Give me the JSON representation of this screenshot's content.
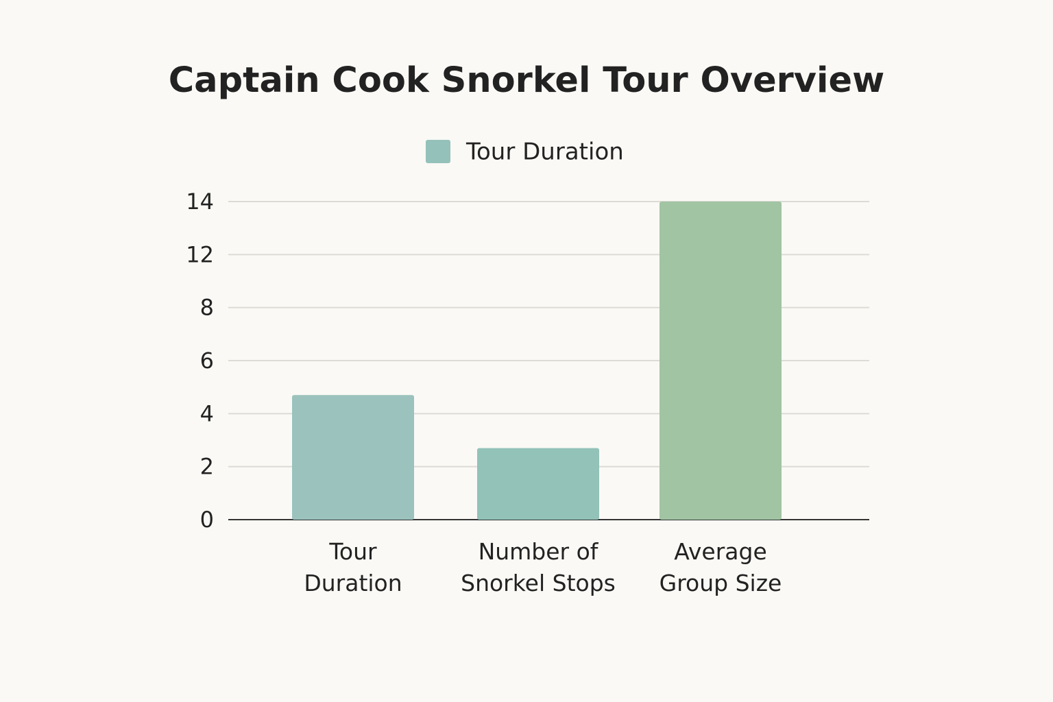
{
  "chart_data": {
    "type": "bar",
    "title": "Captain Cook Snorkel Tour Overview",
    "categories": [
      "Tour\nDuration",
      "Number of\nSnorkel Stops",
      "Average\nGroup Size"
    ],
    "series": [
      {
        "name": "Tour Duration",
        "color": "#94c1b9",
        "colors": [
          "#9bc2bc",
          "#92c2b8",
          "#a1c4a3"
        ],
        "values": [
          4.7,
          2.7,
          14
        ]
      }
    ],
    "ylim": [
      0,
      14
    ],
    "yticks": [
      0,
      2,
      4,
      6,
      8,
      12,
      14
    ],
    "grid": true,
    "legend": "top"
  }
}
